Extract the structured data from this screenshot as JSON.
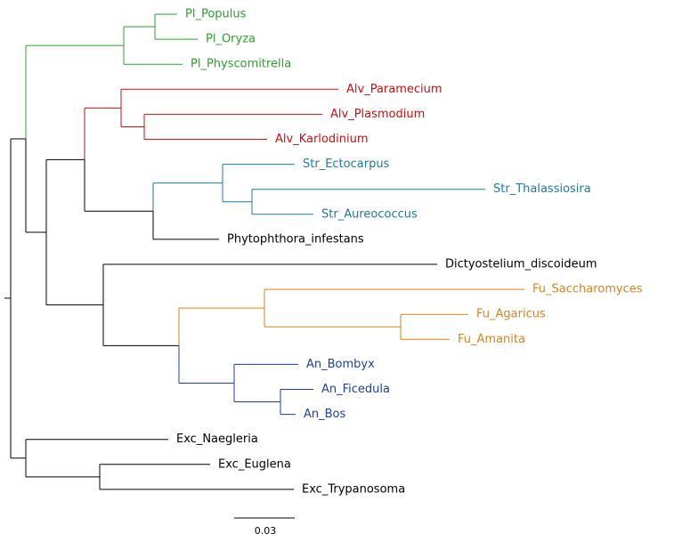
{
  "leaves": [
    "Pl_Populus",
    "Pl_Oryza",
    "Pl_Physcomitrella",
    "Alv_Paramecium",
    "Alv_Plasmodium",
    "Alv_Karlodinium",
    "Str_Ectocarpus",
    "Str_Thalassiosira",
    "Str_Aureococcus",
    "Phytophthora_infestans",
    "Dictyostelium_discoideum",
    "Fu_Saccharomyces",
    "Fu_Agaricus",
    "Fu_Amanita",
    "An_Bombyx",
    "An_Ficedula",
    "An_Bos",
    "Exc_Naegleria",
    "Exc_Euglena",
    "Exc_Trypanosoma"
  ],
  "scale_bar": {
    "label": "0.03"
  }
}
